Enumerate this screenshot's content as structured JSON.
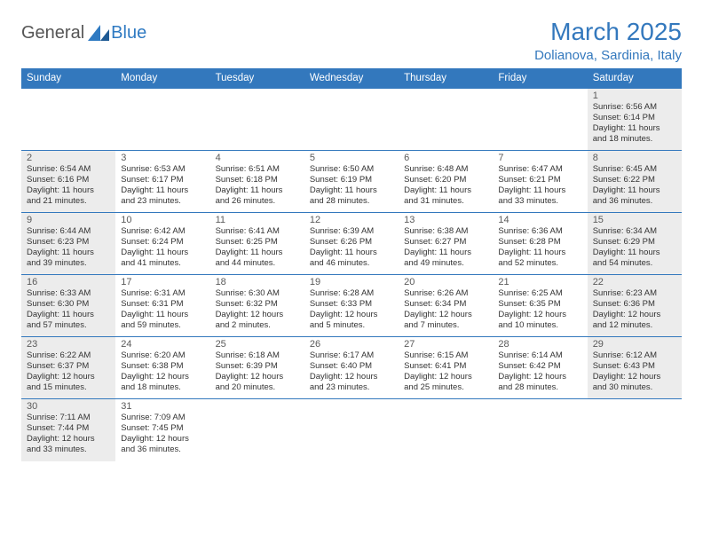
{
  "logo": {
    "general": "General",
    "blue": "Blue"
  },
  "title": "March 2025",
  "subtitle": "Dolianova, Sardinia, Italy",
  "colors": {
    "accent": "#3378bd",
    "shaded": "#ececec",
    "text": "#333333",
    "daynum": "#5a5a5a",
    "logo_gray": "#555555",
    "logo_blue": "#2f7ac2",
    "background": "#ffffff"
  },
  "layout": {
    "type": "calendar",
    "columns": 7,
    "rows": 6,
    "shaded_col_indices": [
      0,
      6
    ]
  },
  "weekdays": [
    "Sunday",
    "Monday",
    "Tuesday",
    "Wednesday",
    "Thursday",
    "Friday",
    "Saturday"
  ],
  "weeks": [
    [
      null,
      null,
      null,
      null,
      null,
      null,
      {
        "n": 1,
        "sr": "6:56 AM",
        "ss": "6:14 PM",
        "dl": "11 hours and 18 minutes."
      }
    ],
    [
      {
        "n": 2,
        "sr": "6:54 AM",
        "ss": "6:16 PM",
        "dl": "11 hours and 21 minutes."
      },
      {
        "n": 3,
        "sr": "6:53 AM",
        "ss": "6:17 PM",
        "dl": "11 hours and 23 minutes."
      },
      {
        "n": 4,
        "sr": "6:51 AM",
        "ss": "6:18 PM",
        "dl": "11 hours and 26 minutes."
      },
      {
        "n": 5,
        "sr": "6:50 AM",
        "ss": "6:19 PM",
        "dl": "11 hours and 28 minutes."
      },
      {
        "n": 6,
        "sr": "6:48 AM",
        "ss": "6:20 PM",
        "dl": "11 hours and 31 minutes."
      },
      {
        "n": 7,
        "sr": "6:47 AM",
        "ss": "6:21 PM",
        "dl": "11 hours and 33 minutes."
      },
      {
        "n": 8,
        "sr": "6:45 AM",
        "ss": "6:22 PM",
        "dl": "11 hours and 36 minutes."
      }
    ],
    [
      {
        "n": 9,
        "sr": "6:44 AM",
        "ss": "6:23 PM",
        "dl": "11 hours and 39 minutes."
      },
      {
        "n": 10,
        "sr": "6:42 AM",
        "ss": "6:24 PM",
        "dl": "11 hours and 41 minutes."
      },
      {
        "n": 11,
        "sr": "6:41 AM",
        "ss": "6:25 PM",
        "dl": "11 hours and 44 minutes."
      },
      {
        "n": 12,
        "sr": "6:39 AM",
        "ss": "6:26 PM",
        "dl": "11 hours and 46 minutes."
      },
      {
        "n": 13,
        "sr": "6:38 AM",
        "ss": "6:27 PM",
        "dl": "11 hours and 49 minutes."
      },
      {
        "n": 14,
        "sr": "6:36 AM",
        "ss": "6:28 PM",
        "dl": "11 hours and 52 minutes."
      },
      {
        "n": 15,
        "sr": "6:34 AM",
        "ss": "6:29 PM",
        "dl": "11 hours and 54 minutes."
      }
    ],
    [
      {
        "n": 16,
        "sr": "6:33 AM",
        "ss": "6:30 PM",
        "dl": "11 hours and 57 minutes."
      },
      {
        "n": 17,
        "sr": "6:31 AM",
        "ss": "6:31 PM",
        "dl": "11 hours and 59 minutes."
      },
      {
        "n": 18,
        "sr": "6:30 AM",
        "ss": "6:32 PM",
        "dl": "12 hours and 2 minutes."
      },
      {
        "n": 19,
        "sr": "6:28 AM",
        "ss": "6:33 PM",
        "dl": "12 hours and 5 minutes."
      },
      {
        "n": 20,
        "sr": "6:26 AM",
        "ss": "6:34 PM",
        "dl": "12 hours and 7 minutes."
      },
      {
        "n": 21,
        "sr": "6:25 AM",
        "ss": "6:35 PM",
        "dl": "12 hours and 10 minutes."
      },
      {
        "n": 22,
        "sr": "6:23 AM",
        "ss": "6:36 PM",
        "dl": "12 hours and 12 minutes."
      }
    ],
    [
      {
        "n": 23,
        "sr": "6:22 AM",
        "ss": "6:37 PM",
        "dl": "12 hours and 15 minutes."
      },
      {
        "n": 24,
        "sr": "6:20 AM",
        "ss": "6:38 PM",
        "dl": "12 hours and 18 minutes."
      },
      {
        "n": 25,
        "sr": "6:18 AM",
        "ss": "6:39 PM",
        "dl": "12 hours and 20 minutes."
      },
      {
        "n": 26,
        "sr": "6:17 AM",
        "ss": "6:40 PM",
        "dl": "12 hours and 23 minutes."
      },
      {
        "n": 27,
        "sr": "6:15 AM",
        "ss": "6:41 PM",
        "dl": "12 hours and 25 minutes."
      },
      {
        "n": 28,
        "sr": "6:14 AM",
        "ss": "6:42 PM",
        "dl": "12 hours and 28 minutes."
      },
      {
        "n": 29,
        "sr": "6:12 AM",
        "ss": "6:43 PM",
        "dl": "12 hours and 30 minutes."
      }
    ],
    [
      {
        "n": 30,
        "sr": "7:11 AM",
        "ss": "7:44 PM",
        "dl": "12 hours and 33 minutes."
      },
      {
        "n": 31,
        "sr": "7:09 AM",
        "ss": "7:45 PM",
        "dl": "12 hours and 36 minutes."
      },
      null,
      null,
      null,
      null,
      null
    ]
  ],
  "labels": {
    "sunrise": "Sunrise:",
    "sunset": "Sunset:",
    "daylight": "Daylight:"
  }
}
